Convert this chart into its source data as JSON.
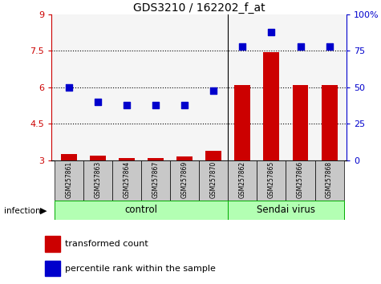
{
  "title": "GDS3210 / 162202_f_at",
  "samples": [
    "GSM257861",
    "GSM257863",
    "GSM257864",
    "GSM257867",
    "GSM257869",
    "GSM257870",
    "GSM257862",
    "GSM257865",
    "GSM257866",
    "GSM257868"
  ],
  "transformed_count": [
    3.25,
    3.2,
    3.1,
    3.1,
    3.15,
    3.4,
    6.1,
    7.45,
    6.1,
    6.1
  ],
  "percentile_rank": [
    50,
    40,
    38,
    38,
    38,
    48,
    78,
    88,
    78,
    78
  ],
  "group_boundary": 6,
  "ylim": [
    3,
    9
  ],
  "yticks_left": [
    3,
    4.5,
    6,
    7.5,
    9
  ],
  "yticks_right_vals": [
    0,
    25,
    50,
    75,
    100
  ],
  "yticks_right_labels": [
    "0",
    "25",
    "50",
    "75",
    "100%"
  ],
  "bar_color": "#cc0000",
  "scatter_color": "#0000cc",
  "infection_label": "infection",
  "legend_bar_label": "transformed count",
  "legend_scatter_label": "percentile rank within the sample",
  "bar_width": 0.55,
  "plot_bg": "#f5f5f5",
  "label_box_color": "#c8c8c8",
  "group_color": "#b3ffb3",
  "group_border_color": "#00aa00"
}
